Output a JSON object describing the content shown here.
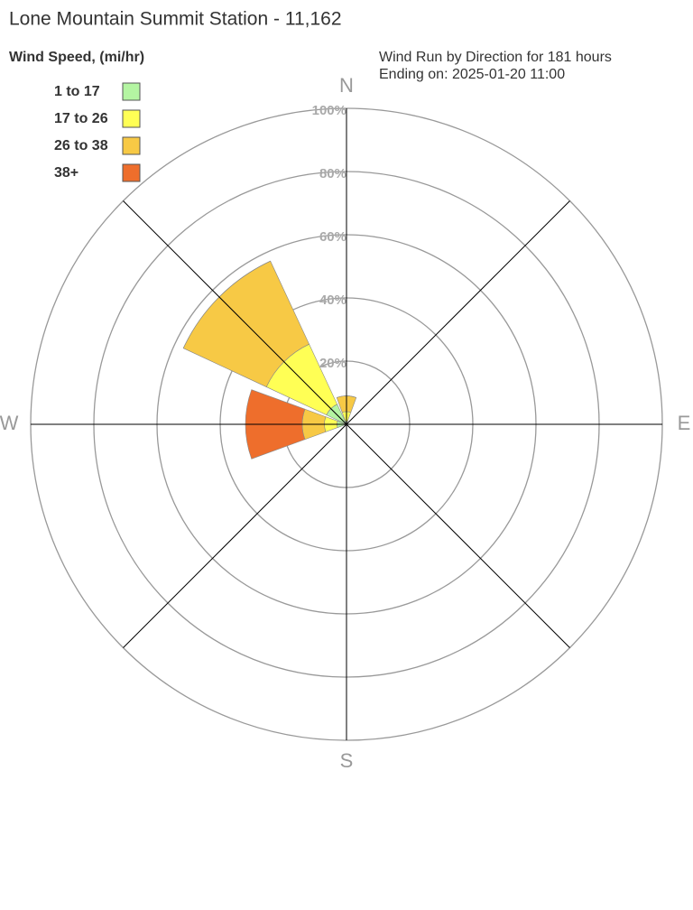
{
  "chart_data": {
    "type": "windrose",
    "title": "Lone Mountain Summit Station - 11,162",
    "legend_title": "Wind Speed, (mi/hr)",
    "subtitle": [
      "Wind Run by Direction for 181 hours",
      "Ending on: 2025-01-20 11:00"
    ],
    "categories": [
      "N",
      null,
      "E",
      null,
      "S",
      null,
      "W",
      null
    ],
    "series": [
      {
        "name": "1 to 17",
        "color": "#b4f5a2",
        "values": [
          1,
          0,
          0,
          0,
          0,
          0,
          3,
          7
        ]
      },
      {
        "name": "17 to 26",
        "color": "#ffff55",
        "values": [
          3,
          0,
          0,
          0,
          0,
          0,
          4,
          21
        ]
      },
      {
        "name": "26 to 38",
        "color": "#f7c945",
        "values": [
          5,
          0,
          0,
          0,
          0,
          0,
          7,
          29
        ]
      },
      {
        "name": "38+",
        "color": "#ee6e2c",
        "values": [
          0,
          0,
          0,
          0,
          0,
          0,
          18,
          0
        ]
      }
    ],
    "rlim": [
      0,
      100
    ],
    "rticks": [
      {
        "value": 20,
        "label": "20%"
      },
      {
        "value": 40,
        "label": "40%"
      },
      {
        "value": 60,
        "label": "60%"
      },
      {
        "value": 80,
        "label": "80%"
      },
      {
        "value": 100,
        "label": "100%"
      }
    ],
    "grid": true
  }
}
